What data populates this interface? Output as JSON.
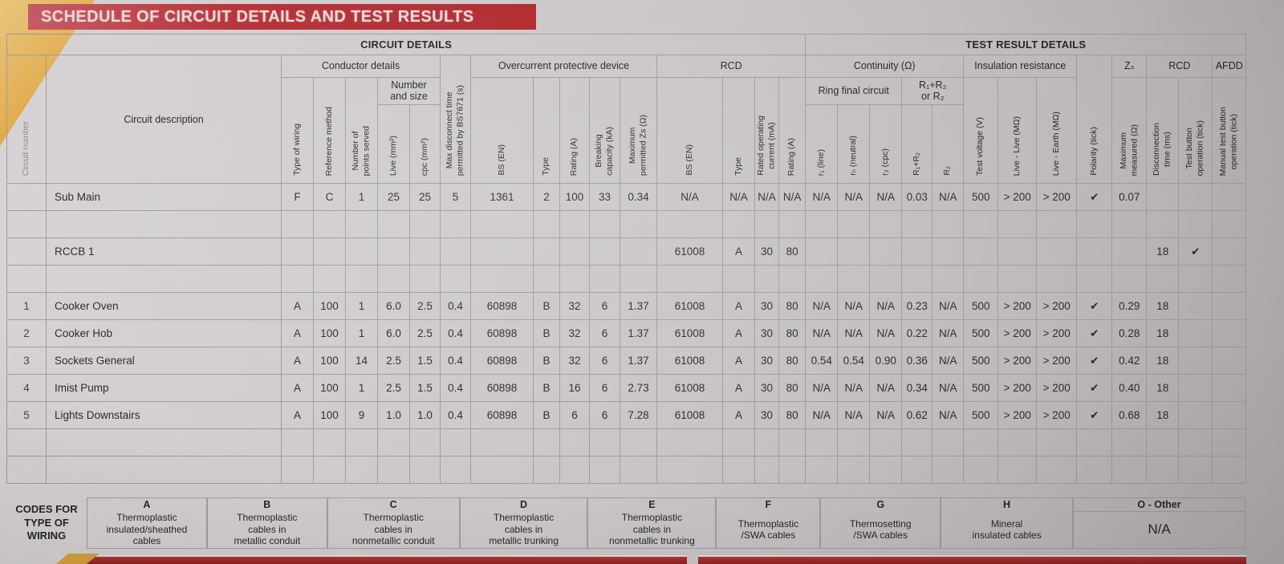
{
  "banner": {
    "title": "SCHEDULE OF CIRCUIT DETAILS AND TEST RESULTS"
  },
  "sections": {
    "circuit_details": "CIRCUIT DETAILS",
    "test_result_details": "TEST RESULT DETAILS"
  },
  "groups": {
    "conductor_details": "Conductor details",
    "number_and_size": "Number\nand size",
    "ocpd": "Overcurrent protective device",
    "rcd": "RCD",
    "continuity": "Continuity (Ω)",
    "ring_final_circuit": "Ring final circuit",
    "r1r2_or_r2": "R₁+R₂\nor R₂",
    "insulation_resistance": "Insulation resistance",
    "zs": "Zₛ",
    "rcd_test": "RCD",
    "afdd": "AFDD"
  },
  "columns": {
    "circuit_number": "Circuit number",
    "circuit_description": "Circuit description",
    "type_of_wiring": "Type of wiring",
    "reference_method": "Reference method",
    "points_served": "Number of\npoints served",
    "live_mm2": "Live (mm²)",
    "cpc_mm2": "cpc (mm²)",
    "max_disconnect": "Max disconnect time\npermitted by BS7671 (s)",
    "ocpd_bs_en": "BS (EN)",
    "ocpd_type": "Type",
    "ocpd_rating": "Rating (A)",
    "breaking_capacity": "Breaking\ncapacity (kA)",
    "max_permitted_zs": "Maximum\npermitted Zs (Ω)",
    "rcd_bs_en": "BS (EN)",
    "rcd_type": "Type",
    "rated_operating_current": "Rated operating\ncurrent (mA)",
    "rcd_rating": "Rating (A)",
    "r1_line": "r₁ (line)",
    "rn_neutral": "rₙ (neutral)",
    "r2_cpc": "r₂ (cpc)",
    "r1_plus_r2": "R₁+R₂",
    "r2": "R₂",
    "test_voltage": "Test voltage (V)",
    "live_live": "Live - Live (MΩ)",
    "live_earth": "Live - Earth (MΩ)",
    "polarity": "Polarity (tick)",
    "maximum_measured": "Maximum\nmeasured (Ω)",
    "disconnection_time": "Disconnection\ntime (ms)",
    "test_button": "Test button\noperation (tick)",
    "manual_test_button": "Manual test button\noperation (tick)"
  },
  "rows": [
    {
      "cells": [
        "",
        "Sub Main",
        "F",
        "C",
        "1",
        "25",
        "25",
        "5",
        "1361",
        "2",
        "100",
        "33",
        "0.34",
        "N/A",
        "N/A",
        "N/A",
        "N/A",
        "N/A",
        "N/A",
        "N/A",
        "0.03",
        "N/A",
        "500",
        "> 200",
        "> 200",
        "✔",
        "0.07",
        "",
        "",
        ""
      ]
    },
    {
      "cells": [
        "",
        "",
        "",
        "",
        "",
        "",
        "",
        "",
        "",
        "",
        "",
        "",
        "",
        "",
        "",
        "",
        "",
        "",
        "",
        "",
        "",
        "",
        "",
        "",
        "",
        "",
        "",
        "",
        "",
        ""
      ]
    },
    {
      "cells": [
        "",
        "RCCB 1",
        "",
        "",
        "",
        "",
        "",
        "",
        "",
        "",
        "",
        "",
        "",
        "61008",
        "A",
        "30",
        "80",
        "",
        "",
        "",
        "",
        "",
        "",
        "",
        "",
        "",
        "",
        "18",
        "✔",
        ""
      ]
    },
    {
      "cells": [
        "",
        "",
        "",
        "",
        "",
        "",
        "",
        "",
        "",
        "",
        "",
        "",
        "",
        "",
        "",
        "",
        "",
        "",
        "",
        "",
        "",
        "",
        "",
        "",
        "",
        "",
        "",
        "",
        "",
        ""
      ]
    },
    {
      "cells": [
        "1",
        "Cooker Oven",
        "A",
        "100",
        "1",
        "6.0",
        "2.5",
        "0.4",
        "60898",
        "B",
        "32",
        "6",
        "1.37",
        "61008",
        "A",
        "30",
        "80",
        "N/A",
        "N/A",
        "N/A",
        "0.23",
        "N/A",
        "500",
        "> 200",
        "> 200",
        "✔",
        "0.29",
        "18",
        "",
        ""
      ]
    },
    {
      "cells": [
        "2",
        "Cooker Hob",
        "A",
        "100",
        "1",
        "6.0",
        "2.5",
        "0.4",
        "60898",
        "B",
        "32",
        "6",
        "1.37",
        "61008",
        "A",
        "30",
        "80",
        "N/A",
        "N/A",
        "N/A",
        "0.22",
        "N/A",
        "500",
        "> 200",
        "> 200",
        "✔",
        "0.28",
        "18",
        "",
        ""
      ]
    },
    {
      "cells": [
        "3",
        "Sockets General",
        "A",
        "100",
        "14",
        "2.5",
        "1.5",
        "0.4",
        "60898",
        "B",
        "32",
        "6",
        "1.37",
        "61008",
        "A",
        "30",
        "80",
        "0.54",
        "0.54",
        "0.90",
        "0.36",
        "N/A",
        "500",
        "> 200",
        "> 200",
        "✔",
        "0.42",
        "18",
        "",
        ""
      ]
    },
    {
      "cells": [
        "4",
        "Imist Pump",
        "A",
        "100",
        "1",
        "2.5",
        "1.5",
        "0.4",
        "60898",
        "B",
        "16",
        "6",
        "2.73",
        "61008",
        "A",
        "30",
        "80",
        "N/A",
        "N/A",
        "N/A",
        "0.34",
        "N/A",
        "500",
        "> 200",
        "> 200",
        "✔",
        "0.40",
        "18",
        "",
        ""
      ]
    },
    {
      "cells": [
        "5",
        "Lights Downstairs",
        "A",
        "100",
        "9",
        "1.0",
        "1.0",
        "0.4",
        "60898",
        "B",
        "6",
        "6",
        "7.28",
        "61008",
        "A",
        "30",
        "80",
        "N/A",
        "N/A",
        "N/A",
        "0.62",
        "N/A",
        "500",
        "> 200",
        "> 200",
        "✔",
        "0.68",
        "18",
        "",
        ""
      ]
    },
    {
      "cells": [
        "",
        "",
        "",
        "",
        "",
        "",
        "",
        "",
        "",
        "",
        "",
        "",
        "",
        "",
        "",
        "",
        "",
        "",
        "",
        "",
        "",
        "",
        "",
        "",
        "",
        "",
        "",
        "",
        "",
        ""
      ]
    },
    {
      "cells": [
        "",
        "",
        "",
        "",
        "",
        "",
        "",
        "",
        "",
        "",
        "",
        "",
        "",
        "",
        "",
        "",
        "",
        "",
        "",
        "",
        "",
        "",
        "",
        "",
        "",
        "",
        "",
        "",
        "",
        ""
      ]
    }
  ],
  "legend": {
    "label": "CODES FOR\nTYPE OF\nWIRING",
    "items": [
      {
        "code": "A",
        "desc": "Thermoplastic\ninsulated/sheathed\ncables"
      },
      {
        "code": "B",
        "desc": "Thermoplastic\ncables in\nmetallic conduit"
      },
      {
        "code": "C",
        "desc": "Thermoplastic\ncables in\nnonmetallic conduit"
      },
      {
        "code": "D",
        "desc": "Thermoplastic\ncables in\nmetallic trunking"
      },
      {
        "code": "E",
        "desc": "Thermoplastic\ncables in\nnonmetallic trunking"
      },
      {
        "code": "F",
        "desc": "Thermoplastic\n/SWA cables"
      },
      {
        "code": "G",
        "desc": "Thermosetting\n/SWA cables"
      },
      {
        "code": "H",
        "desc": "Mineral\ninsulated cables"
      },
      {
        "code": "O - Other",
        "desc": "N/A"
      }
    ]
  },
  "colors": {
    "banner_red": "#af2a2e",
    "page_gray": "#c9c5c6",
    "corner_tan": "#e2ad52",
    "bottom_red": "#9e2424",
    "bottom_orange": "#d5a03e"
  }
}
